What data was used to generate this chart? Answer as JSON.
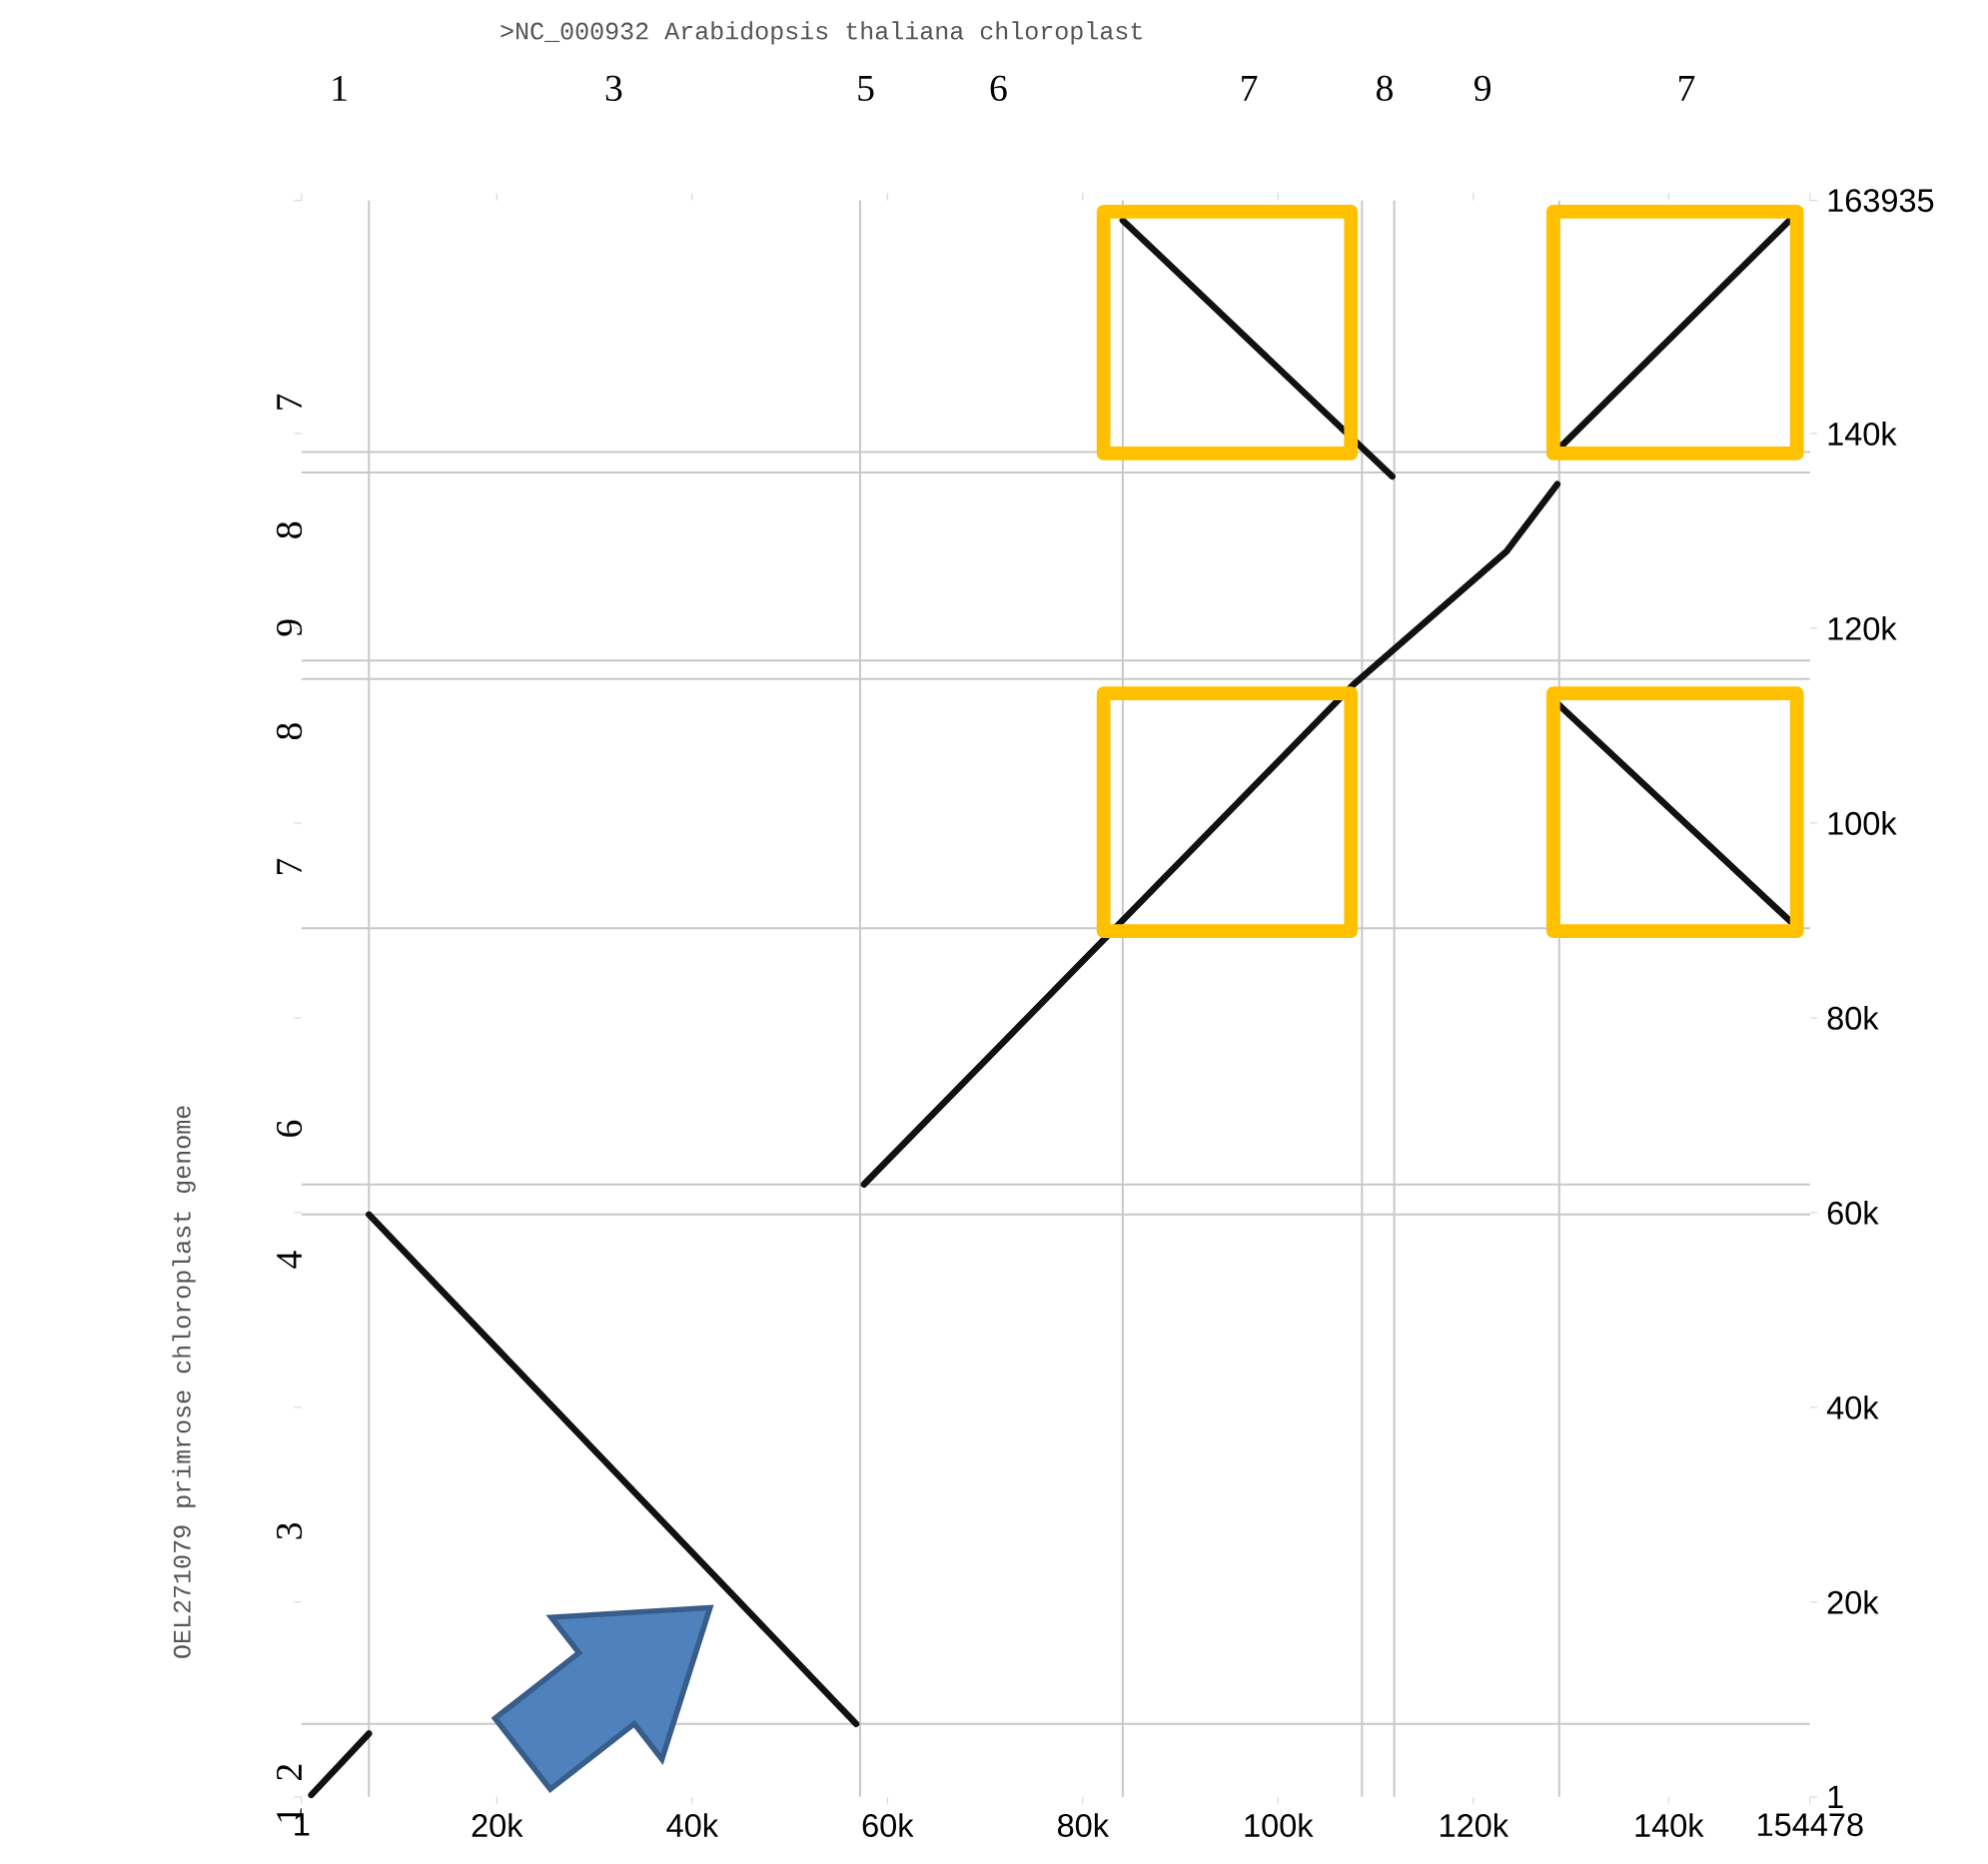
{
  "chart_data": {
    "type": "line",
    "x2label": ">NC_000932 Arabidopsis thaliana chloroplast",
    "y2label": "OEL271079 primrose chloroplast genome",
    "xlim": [
      1,
      154478
    ],
    "ylim": [
      1,
      163935
    ],
    "xticks": [
      1,
      {
        "value": 20000,
        "label": "20k"
      },
      {
        "value": 40000,
        "label": "40k"
      },
      {
        "value": 60000,
        "label": "60k"
      },
      {
        "value": 80000,
        "label": "80k"
      },
      {
        "value": 100000,
        "label": "100k"
      },
      {
        "value": 120000,
        "label": "120k"
      },
      {
        "value": 140000,
        "label": "140k"
      },
      154478
    ],
    "yticks": [
      1,
      {
        "value": 20000,
        "label": "20k"
      },
      {
        "value": 40000,
        "label": "40k"
      },
      {
        "value": 60000,
        "label": "60k"
      },
      {
        "value": 80000,
        "label": "80k"
      },
      {
        "value": 100000,
        "label": "100k"
      },
      {
        "value": 120000,
        "label": "120k"
      },
      {
        "value": 140000,
        "label": "140k"
      },
      163935
    ],
    "annotations": [
      "1",
      "3",
      "5",
      "6",
      "7",
      "8",
      "9",
      "7",
      "1",
      "2",
      "3",
      "4",
      "6",
      "7",
      "8",
      "9",
      "8",
      "7"
    ],
    "marker": "none",
    "ref_lines": [
      {
        "axis": "x",
        "value": 6900,
        "color": "#c8c8c8"
      },
      {
        "axis": "x",
        "value": 57200,
        "color": "#c8c8c8"
      },
      {
        "axis": "x",
        "value": 84100,
        "color": "#c8c8c8"
      },
      {
        "axis": "x",
        "value": 108600,
        "color": "#c8c8c8"
      },
      {
        "axis": "x",
        "value": 111900,
        "color": "#c8c8c8"
      },
      {
        "axis": "x",
        "value": 128800,
        "color": "#c8c8c8"
      },
      {
        "axis": "y",
        "value": 138100,
        "color": "#c8c8c8"
      },
      {
        "axis": "y",
        "value": 136000,
        "color": "#c8c8c8"
      },
      {
        "axis": "y",
        "value": 116700,
        "color": "#c8c8c8"
      },
      {
        "axis": "y",
        "value": 114800,
        "color": "#c8c8c8"
      },
      {
        "axis": "y",
        "value": 89200,
        "color": "#c8c8c8"
      },
      {
        "axis": "y",
        "value": 62900,
        "color": "#c8c8c8"
      },
      {
        "axis": "y",
        "value": 59800,
        "color": "#c8c8c8"
      },
      {
        "axis": "y",
        "value": 7500,
        "color": "#c8c8c8"
      }
    ],
    "series": [
      {
        "color": "#111111",
        "x": [
          1000,
          6900
        ],
        "values": [
          200,
          6500
        ]
      },
      {
        "color": "#111111",
        "x": [
          6900,
          56800
        ],
        "values": [
          59800,
          7500
        ]
      },
      {
        "color": "#111111",
        "x": [
          57600,
          83700,
          107700,
          123400,
          128600
        ],
        "values": [
          62900,
          89600,
          114200,
          127900,
          134800
        ]
      },
      {
        "color": "#111111",
        "x": [
          84100,
          111700
        ],
        "values": [
          161900,
          135600
        ]
      },
      {
        "color": "#111111",
        "x": [
          128600,
          152800
        ],
        "values": [
          138300,
          162300
        ]
      },
      {
        "color": "#111111",
        "x": [
          128600,
          152800
        ],
        "values": [
          112300,
          89600
        ]
      }
    ]
  }
}
